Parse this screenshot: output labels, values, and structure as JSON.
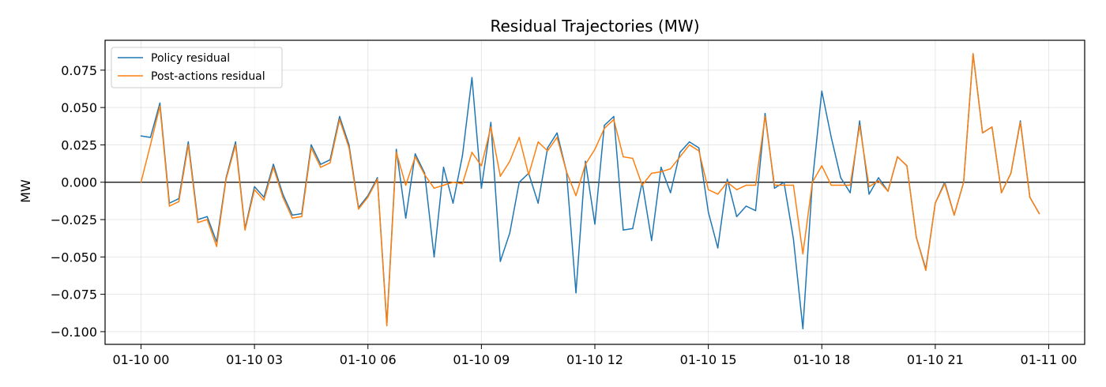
{
  "chart_data": {
    "type": "line",
    "title": "Residual Trajectories (MW)",
    "xlabel": "",
    "ylabel": "MW",
    "x_start": "01-10 00:00",
    "x_step_minutes": 15,
    "xlim_hours": [
      -0.95,
      24.95
    ],
    "ylim": [
      -0.1085,
      0.095
    ],
    "yticks": [
      -0.1,
      -0.075,
      -0.05,
      -0.025,
      0.0,
      0.025,
      0.05,
      0.075
    ],
    "ytick_labels": [
      "−0.100",
      "−0.075",
      "−0.050",
      "−0.025",
      "0.000",
      "0.025",
      "0.050",
      "0.075"
    ],
    "xticks_hours": [
      0,
      3,
      6,
      9,
      12,
      15,
      18,
      21,
      24
    ],
    "xtick_labels": [
      "01-10 00",
      "01-10 03",
      "01-10 06",
      "01-10 09",
      "01-10 12",
      "01-10 15",
      "01-10 18",
      "01-10 21",
      "01-11 00"
    ],
    "grid": true,
    "zero_line": true,
    "legend_position": "upper-left",
    "series": [
      {
        "name": "Policy residual",
        "color": "#1f77b4",
        "values": [
          0.031,
          0.03,
          0.053,
          -0.014,
          -0.011,
          0.027,
          -0.025,
          -0.023,
          -0.04,
          0.003,
          0.027,
          -0.031,
          -0.003,
          -0.01,
          0.012,
          -0.008,
          -0.022,
          -0.021,
          0.025,
          0.012,
          0.015,
          0.044,
          0.025,
          -0.017,
          -0.009,
          0.003,
          -0.095,
          0.022,
          -0.024,
          0.019,
          0.006,
          -0.05,
          0.01,
          -0.014,
          0.018,
          0.07,
          -0.004,
          0.04,
          -0.053,
          -0.034,
          0.0,
          0.006,
          -0.014,
          0.023,
          0.033,
          0.007,
          -0.074,
          0.014,
          -0.028,
          0.038,
          0.044,
          -0.032,
          -0.031,
          0.0,
          -0.039,
          0.01,
          -0.007,
          0.02,
          0.027,
          0.023,
          -0.02,
          -0.044,
          0.002,
          -0.023,
          -0.016,
          -0.019,
          0.046,
          -0.004,
          0.0,
          -0.038,
          -0.098,
          0.0,
          0.061,
          0.03,
          0.003,
          -0.007,
          0.041,
          -0.008,
          0.003,
          -0.006,
          0.017,
          0.011,
          -0.037,
          -0.058,
          -0.014,
          0.0,
          -0.022,
          0.0,
          0.086,
          0.033,
          0.037,
          -0.007,
          0.006,
          0.041,
          -0.01,
          -0.021
        ]
      },
      {
        "name": "Post-actions residual",
        "color": "#ff7f0e",
        "values": [
          0.0,
          0.025,
          0.051,
          -0.016,
          -0.013,
          0.025,
          -0.027,
          -0.025,
          -0.043,
          0.002,
          0.025,
          -0.032,
          -0.005,
          -0.012,
          0.01,
          -0.01,
          -0.024,
          -0.023,
          0.023,
          0.01,
          0.013,
          0.042,
          0.023,
          -0.018,
          -0.01,
          0.002,
          -0.096,
          0.02,
          -0.002,
          0.017,
          0.005,
          -0.004,
          -0.002,
          0.0,
          -0.001,
          0.02,
          0.011,
          0.037,
          0.004,
          0.014,
          0.03,
          0.005,
          0.027,
          0.021,
          0.03,
          0.007,
          -0.009,
          0.012,
          0.022,
          0.036,
          0.042,
          0.017,
          0.016,
          -0.002,
          0.006,
          0.007,
          0.009,
          0.017,
          0.025,
          0.021,
          -0.005,
          -0.008,
          0.0,
          -0.005,
          -0.002,
          -0.002,
          0.044,
          -0.002,
          -0.002,
          -0.002,
          -0.048,
          0.0,
          0.011,
          -0.002,
          -0.002,
          -0.002,
          0.038,
          -0.003,
          0.001,
          -0.006,
          0.017,
          0.011,
          -0.037,
          -0.059,
          -0.014,
          -0.001,
          -0.022,
          0.0,
          0.086,
          0.033,
          0.037,
          -0.007,
          0.006,
          0.04,
          -0.01,
          -0.021
        ]
      }
    ]
  }
}
